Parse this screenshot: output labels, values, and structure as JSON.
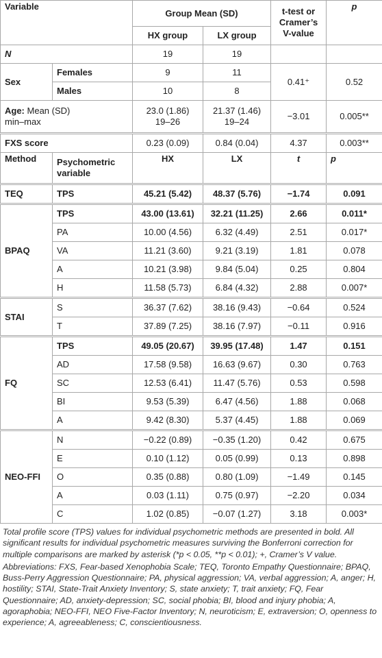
{
  "table": {
    "rows": [
      [
        "Variable",
        "Group Mean (SD)",
        "t-test or Cramer’s V-value",
        "p"
      ],
      [
        "HX group",
        "LX group"
      ],
      [
        "N",
        "19",
        "19"
      ],
      [
        "Sex",
        "Females",
        "9",
        "11",
        "0.41⁺",
        "0.52"
      ],
      [
        "Males",
        "10",
        "8"
      ],
      [
        "Age:",
        "Mean (SD)",
        "min–max",
        "23.0 (1.86)",
        "19–26",
        "21.37 (1.46)",
        "19–24",
        "−3.01",
        "0.005**"
      ],
      [
        "FXS score",
        "0.23 (0.09)",
        "0.84 (0.04)",
        "4.37",
        "0.003**"
      ],
      [
        "Method",
        "Psychometric variable",
        "HX",
        "LX",
        "t",
        "p"
      ],
      [
        "TEQ",
        "TPS",
        "45.21 (5.42)",
        "48.37 (5.76)",
        "−1.74",
        "0.091"
      ],
      [
        "BPAQ",
        "TPS",
        "43.00 (13.61)",
        "32.21 (11.25)",
        "2.66",
        "0.011*"
      ],
      [
        "PA",
        "10.00 (4.56)",
        "6.32 (4.49)",
        "2.51",
        "0.017*"
      ],
      [
        "VA",
        "11.21 (3.60)",
        "9.21 (3.19)",
        "1.81",
        "0.078"
      ],
      [
        "A",
        "10.21 (3.98)",
        "9.84 (5.04)",
        "0.25",
        "0.804"
      ],
      [
        "H",
        "11.58 (5.73)",
        "6.84 (4.32)",
        "2.88",
        "0.007*"
      ],
      [
        "STAI",
        "S",
        "36.37 (7.62)",
        "38.16 (9.43)",
        "−0.64",
        "0.524"
      ],
      [
        "T",
        "37.89 (7.25)",
        "38.16 (7.97)",
        "−0.11",
        "0.916"
      ],
      [
        "FQ",
        "TPS",
        "49.05 (20.67)",
        "39.95 (17.48)",
        "1.47",
        "0.151"
      ],
      [
        "AD",
        "17.58 (9.58)",
        "16.63 (9.67)",
        "0.30",
        "0.763"
      ],
      [
        "SC",
        "12.53 (6.41)",
        "11.47 (5.76)",
        "0.53",
        "0.598"
      ],
      [
        "BI",
        "9.53 (5.39)",
        "6.47 (4.56)",
        "1.88",
        "0.068"
      ],
      [
        "A",
        "9.42 (8.30)",
        "5.37 (4.45)",
        "1.88",
        "0.069"
      ],
      [
        "NEO-FFI",
        "N",
        "−0.22 (0.89)",
        "−0.35 (1.20)",
        "0.42",
        "0.675"
      ],
      [
        "E",
        "0.10 (1.12)",
        "0.05 (0.99)",
        "0.13",
        "0.898"
      ],
      [
        "O",
        "0.35 (0.88)",
        "0.80 (1.09)",
        "−1.49",
        "0.145"
      ],
      [
        "A",
        "0.03 (1.11)",
        "0.75 (0.97)",
        "−2.20",
        "0.034"
      ],
      [
        "C",
        "1.02 (0.85)",
        "−0.07 (1.27)",
        "3.18",
        "0.003*"
      ]
    ]
  },
  "notes": [
    "Total profile score (TPS) values for individual psychometric methods are presented in bold. All significant results for individual psychometric measures surviving the Bonferroni correction for multiple comparisons are marked by asterisk (*p < 0.05, **p < 0.01); +, Cramer’s V value.",
    "Abbreviations: FXS, Fear-based Xenophobia Scale; TEQ, Toronto Empathy Questionnaire; BPAQ, Buss-Perry Aggression Questionnaire; PA, physical aggression; VA, verbal aggression; A, anger; H, hostility; STAI, State-Trait Anxiety Inventory; S, state anxiety; T, trait anxiety; FQ, Fear Questionnaire; AD, anxiety-depression; SC, social phobia; BI, blood and injury phobia; A, agoraphobia; NEO-FFI, NEO Five-Factor Inventory; N, neuroticism; E, extraversion; O, openness to experience; A, agreeableness; C, conscientiousness."
  ]
}
